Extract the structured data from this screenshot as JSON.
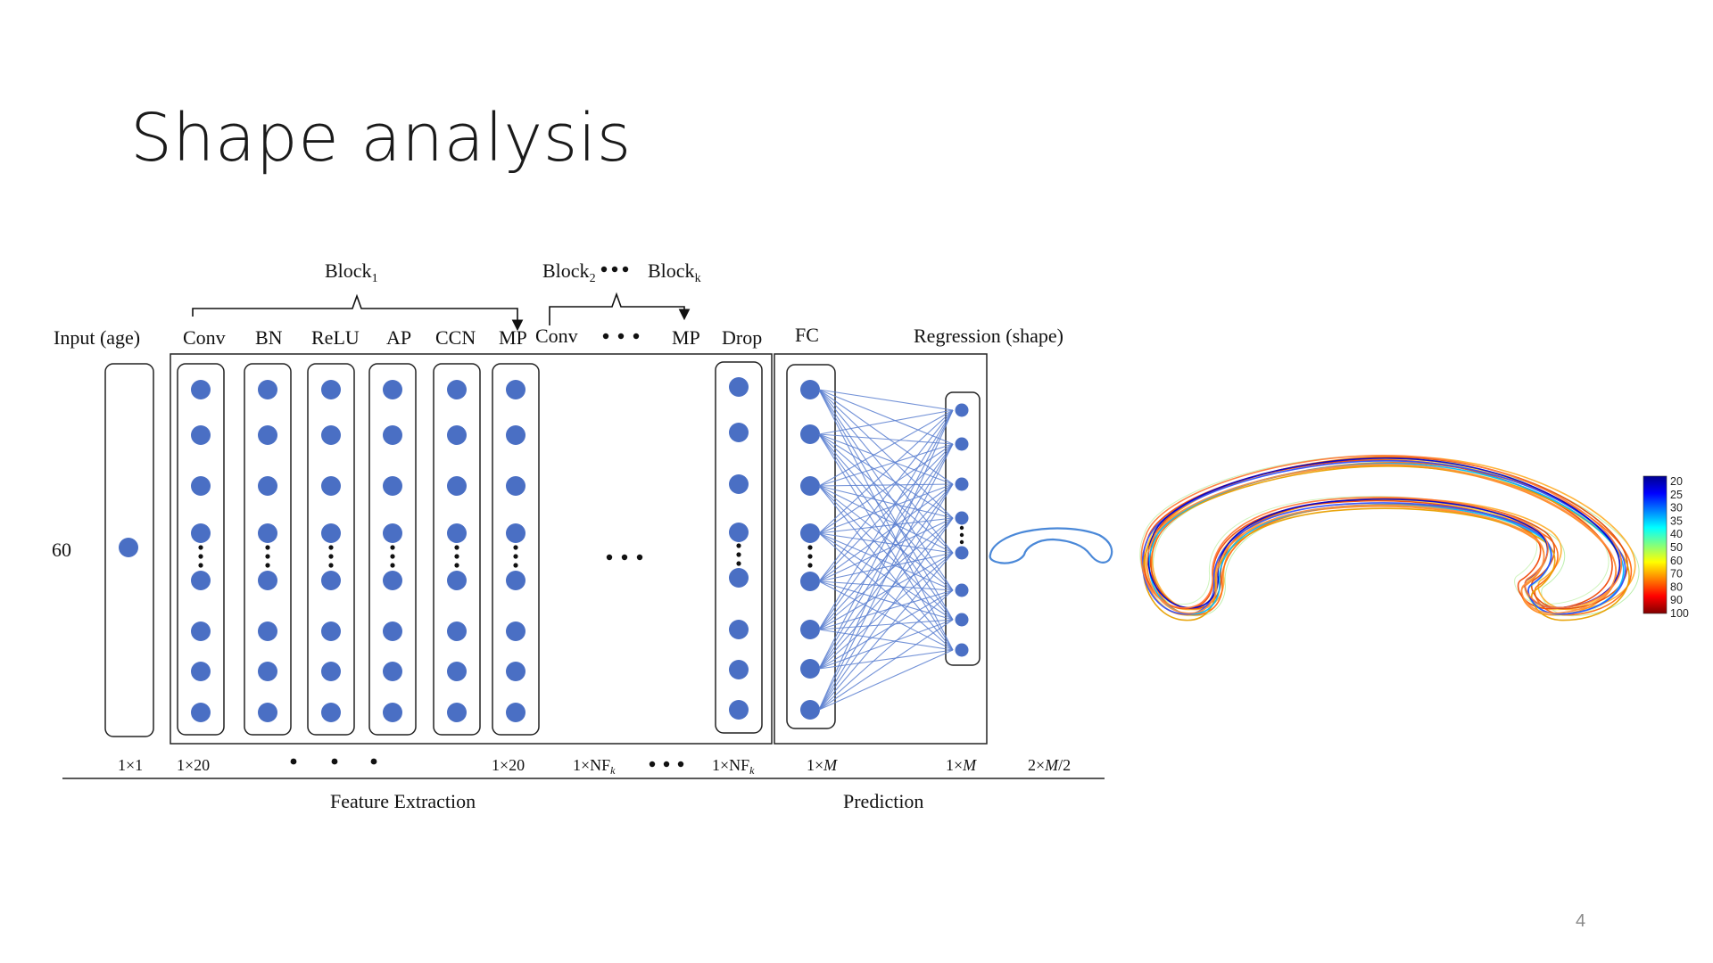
{
  "slide": {
    "title": "Shape analysis",
    "page_number": "4"
  },
  "diagram": {
    "input_value": "60",
    "headers": {
      "input": "Input (age)",
      "conv": "Conv",
      "bn": "BN",
      "relu": "ReLU",
      "ap": "AP",
      "ccn": "CCN",
      "mp": "MP",
      "conv_k": "Conv",
      "mp_k": "MP",
      "drop": "Drop",
      "fc": "FC",
      "regression": "Regression (shape)"
    },
    "block_labels": {
      "block1": {
        "base": "Block",
        "sub": "1"
      },
      "block2": {
        "base": "Block",
        "sub": "2"
      },
      "blockk": {
        "base": "Block",
        "sub": "k"
      }
    },
    "dims": {
      "input": "1×1",
      "conv": "1×20",
      "mp": "1×20",
      "nfk_1": {
        "base": "1×NF",
        "sub": "k"
      },
      "nfk_2": {
        "base": "1×NF",
        "sub": "k"
      },
      "fc": {
        "pre": "1×",
        "var": "M"
      },
      "regression": {
        "pre": "1×",
        "var": "M"
      },
      "output": {
        "pre": "2×",
        "var": "M",
        "post": "/2"
      }
    },
    "section_labels": {
      "feature_extraction": "Feature Extraction",
      "prediction": "Prediction"
    }
  },
  "colorbar": {
    "ticks": [
      "20",
      "25",
      "30",
      "35",
      "40",
      "50",
      "60",
      "70",
      "80",
      "90",
      "100"
    ],
    "colors": [
      "#00008f",
      "#0000ff",
      "#0080ff",
      "#00ffff",
      "#80ff80",
      "#ffff00",
      "#ff8000",
      "#ff0000",
      "#800000"
    ]
  },
  "colors": {
    "node": "#4a6fc4",
    "edge": "#5a7fd0",
    "outline": "#333333",
    "shape_outline": "#4a88d8"
  }
}
